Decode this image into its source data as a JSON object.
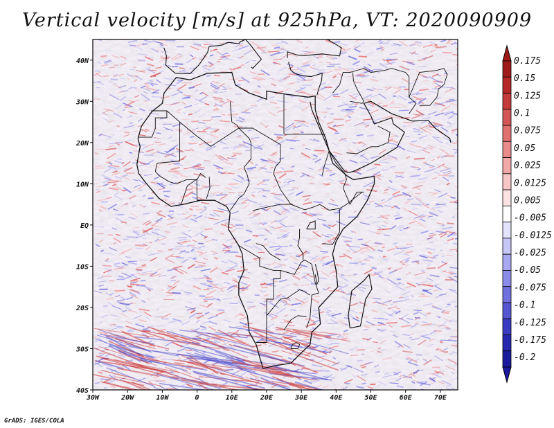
{
  "title": "Vertical velocity [m/s] at 925hPa, VT: 2020090909",
  "credit": "GrADS: IGES/COLA",
  "map": {
    "lon_range": [
      -30,
      75
    ],
    "lat_range": [
      -40,
      45
    ],
    "lat_ticks": [
      {
        "value": 40,
        "label": "40N"
      },
      {
        "value": 30,
        "label": "30N"
      },
      {
        "value": 20,
        "label": "20N"
      },
      {
        "value": 10,
        "label": "10N"
      },
      {
        "value": 0,
        "label": "EQ"
      },
      {
        "value": -10,
        "label": "10S"
      },
      {
        "value": -20,
        "label": "20S"
      },
      {
        "value": -30,
        "label": "30S"
      },
      {
        "value": -40,
        "label": "40S"
      }
    ],
    "lon_ticks": [
      {
        "value": -30,
        "label": "30W"
      },
      {
        "value": -20,
        "label": "20W"
      },
      {
        "value": -10,
        "label": "10W"
      },
      {
        "value": 0,
        "label": "0"
      },
      {
        "value": 10,
        "label": "10E"
      },
      {
        "value": 20,
        "label": "20E"
      },
      {
        "value": 30,
        "label": "30E"
      },
      {
        "value": 40,
        "label": "40E"
      },
      {
        "value": 50,
        "label": "50E"
      },
      {
        "value": 60,
        "label": "60E"
      },
      {
        "value": 70,
        "label": "70E"
      }
    ]
  },
  "colorbar": {
    "labels": [
      "0.175",
      "0.15",
      "0.125",
      "0.1",
      "0.075",
      "0.05",
      "0.025",
      "0.0125",
      "0.005",
      "-0.005",
      "-0.0125",
      "-0.025",
      "-0.05",
      "-0.075",
      "-0.1",
      "-0.125",
      "-0.175",
      "-0.2"
    ],
    "colors": [
      "#a01a1a",
      "#b52626",
      "#c53a3a",
      "#d45555",
      "#e07070",
      "#e98b8b",
      "#f1a8a8",
      "#f7c6c6",
      "#fce3e3",
      "#ffffff",
      "#e3e3fc",
      "#c6c6f7",
      "#a8a8f0",
      "#8b8be8",
      "#7070df",
      "#5555d2",
      "#3a3ac2",
      "#2626b0",
      "#1a1a9c"
    ]
  }
}
